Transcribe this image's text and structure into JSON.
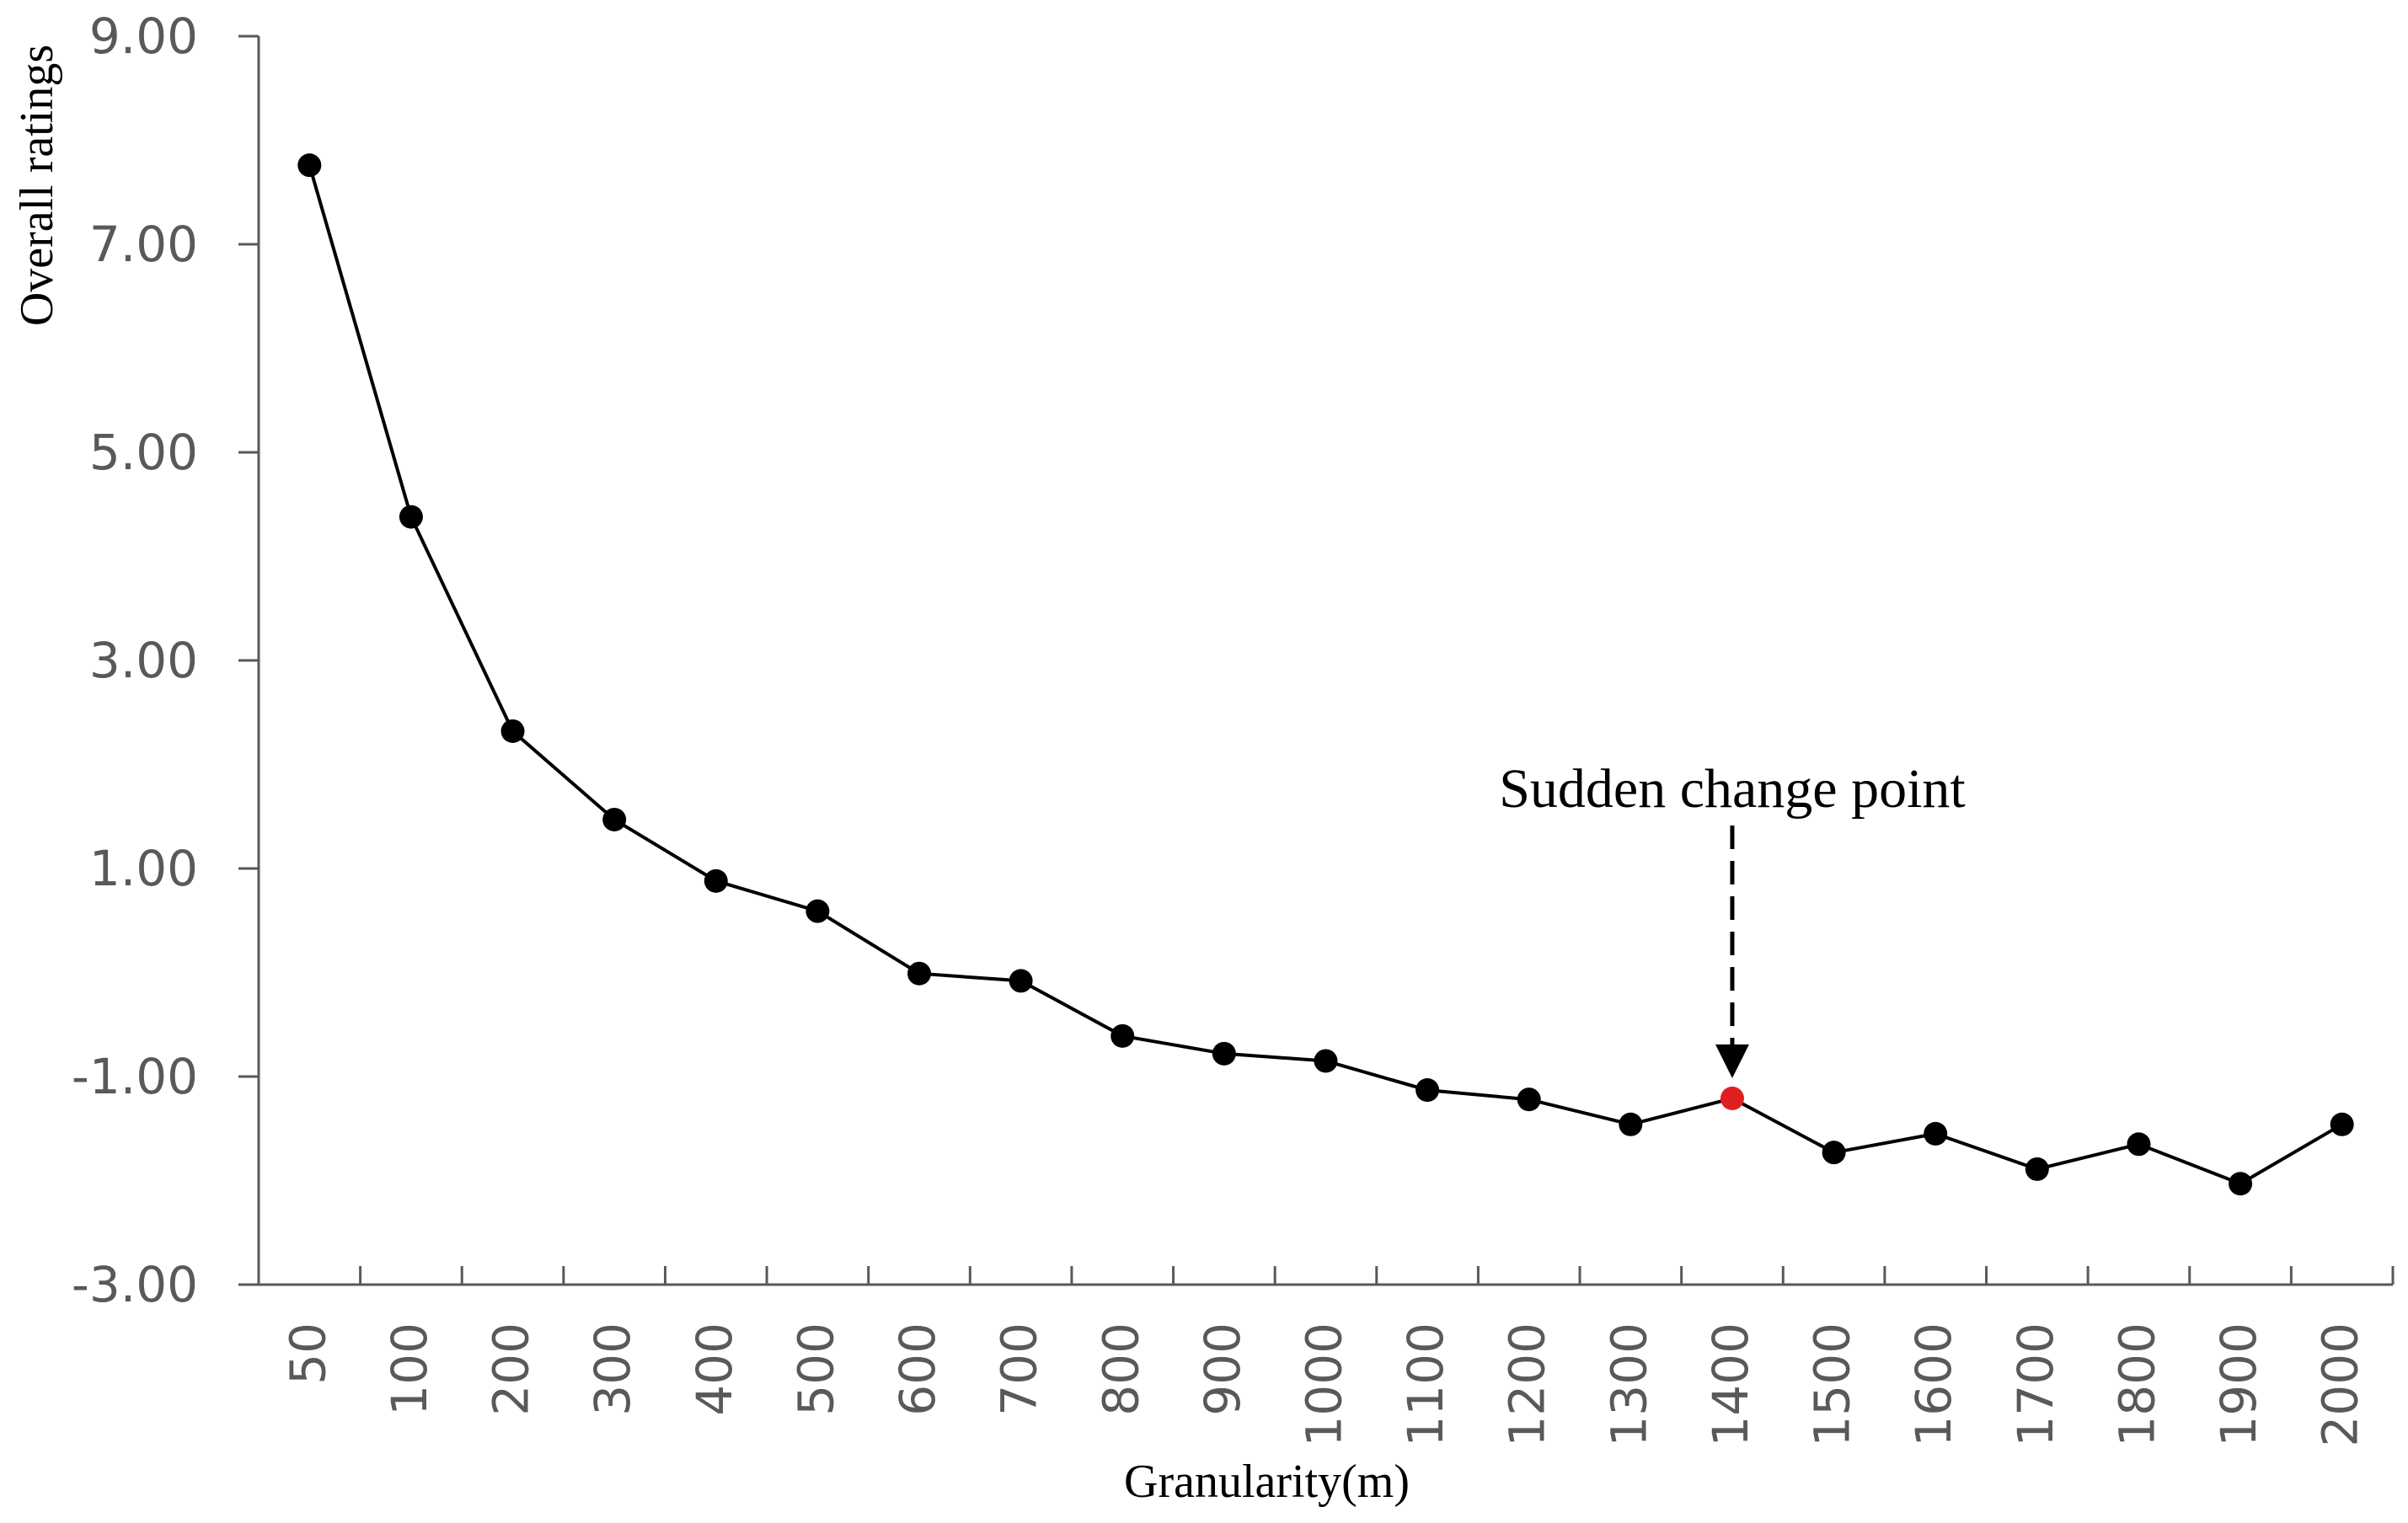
{
  "chart_data": {
    "type": "line",
    "title": "",
    "xlabel": "Granularity(m)",
    "ylabel": "Overall ratings",
    "ylim": [
      -3,
      9
    ],
    "yticks": [
      "-3.00",
      "-1.00",
      "1.00",
      "3.00",
      "5.00",
      "7.00",
      "9.00"
    ],
    "grid": false,
    "categories": [
      "50",
      "100",
      "200",
      "300",
      "400",
      "500",
      "600",
      "700",
      "800",
      "900",
      "1000",
      "1100",
      "1200",
      "1300",
      "1400",
      "1500",
      "1600",
      "1700",
      "1800",
      "1900",
      "2000"
    ],
    "series": [
      {
        "name": "Overall ratings",
        "values": [
          7.76,
          4.38,
          2.32,
          1.47,
          0.88,
          0.59,
          -0.01,
          -0.08,
          -0.61,
          -0.78,
          -0.85,
          -1.13,
          -1.22,
          -1.46,
          -1.21,
          -1.73,
          -1.55,
          -1.89,
          -1.65,
          -2.03,
          -1.46
        ]
      }
    ],
    "annotation": {
      "text": "Sudden change point",
      "category": "1400",
      "highlight_color": "#e02020"
    },
    "colors": {
      "line": "#000000",
      "marker": "#000000",
      "axis": "#595959"
    }
  }
}
